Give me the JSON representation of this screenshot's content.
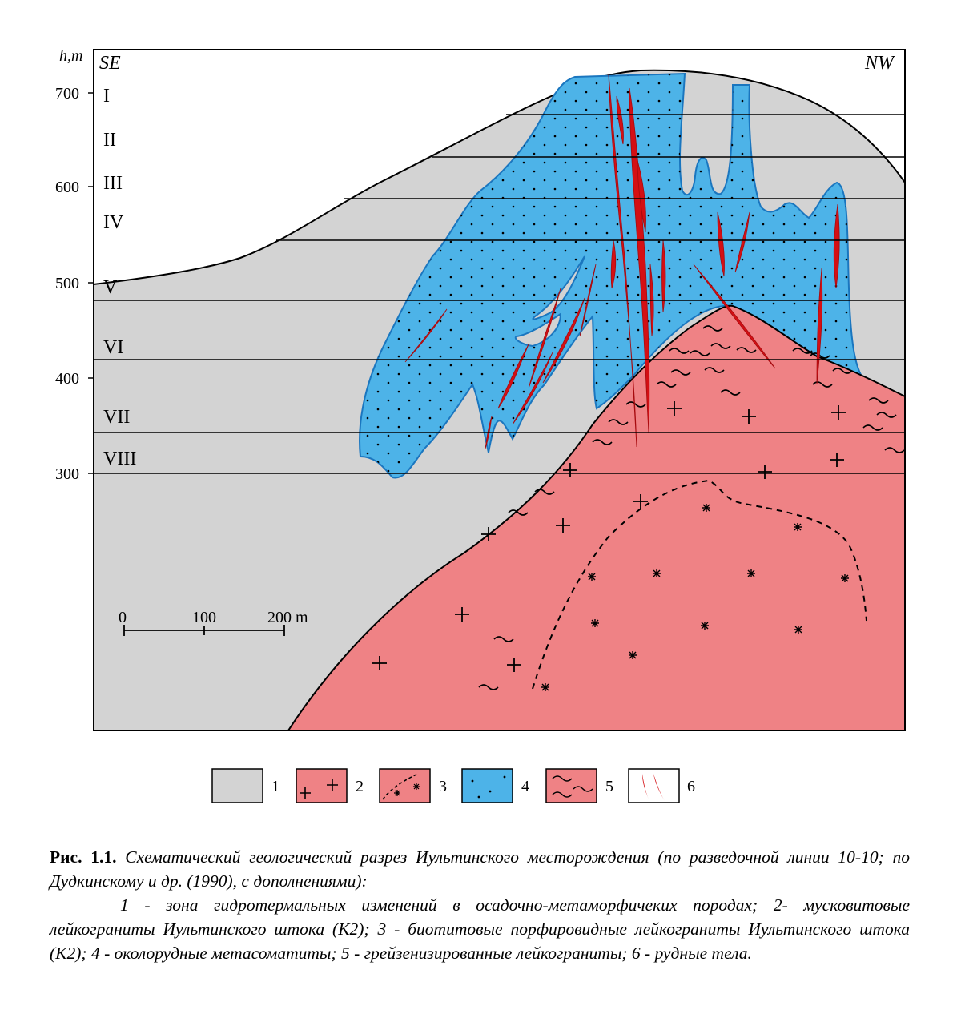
{
  "diagram": {
    "axis_unit": "h,m",
    "direction_left": "SE",
    "direction_right": "NW",
    "elevation_ticks": [
      "700",
      "600",
      "500",
      "400",
      "300"
    ],
    "horizons": [
      "I",
      "II",
      "III",
      "IV",
      "V",
      "VI",
      "VII",
      "VIII"
    ],
    "scale_bar": {
      "labels": [
        "0",
        "100",
        "200 m"
      ]
    },
    "colors": {
      "zone_hydrothermal": "#d3d3d3",
      "granite": "#ef8285",
      "metasomatite": "#4db3e8",
      "ore_body": "#d40f14",
      "outline": "#000000"
    }
  },
  "legend": [
    {
      "number": "1",
      "icon": "grey-fill"
    },
    {
      "number": "2",
      "icon": "pink-crosses"
    },
    {
      "number": "3",
      "icon": "pink-asterisks-dashed"
    },
    {
      "number": "4",
      "icon": "blue-dots"
    },
    {
      "number": "5",
      "icon": "pink-waves"
    },
    {
      "number": "6",
      "icon": "red-veins"
    }
  ],
  "caption": {
    "figure_number": "Рис. 1.1.",
    "title": "Схематический геологический разрез Иультинского месторождения (по разведочной линии 10-10; по Дудкинскому и др. (1990), с дополнениями):",
    "legend_text": "1 - зона гидротермальных изменений в осадочно-метаморфичеких породах; 2- мусковитовые лейкограниты Иультинского штока (K2); 3 - биотитовые порфировидные лейкограниты Иультинского штока (K2); 4 - околорудные метасоматиты; 5 - грейзенизированные лейкограниты; 6 - рудные тела."
  }
}
